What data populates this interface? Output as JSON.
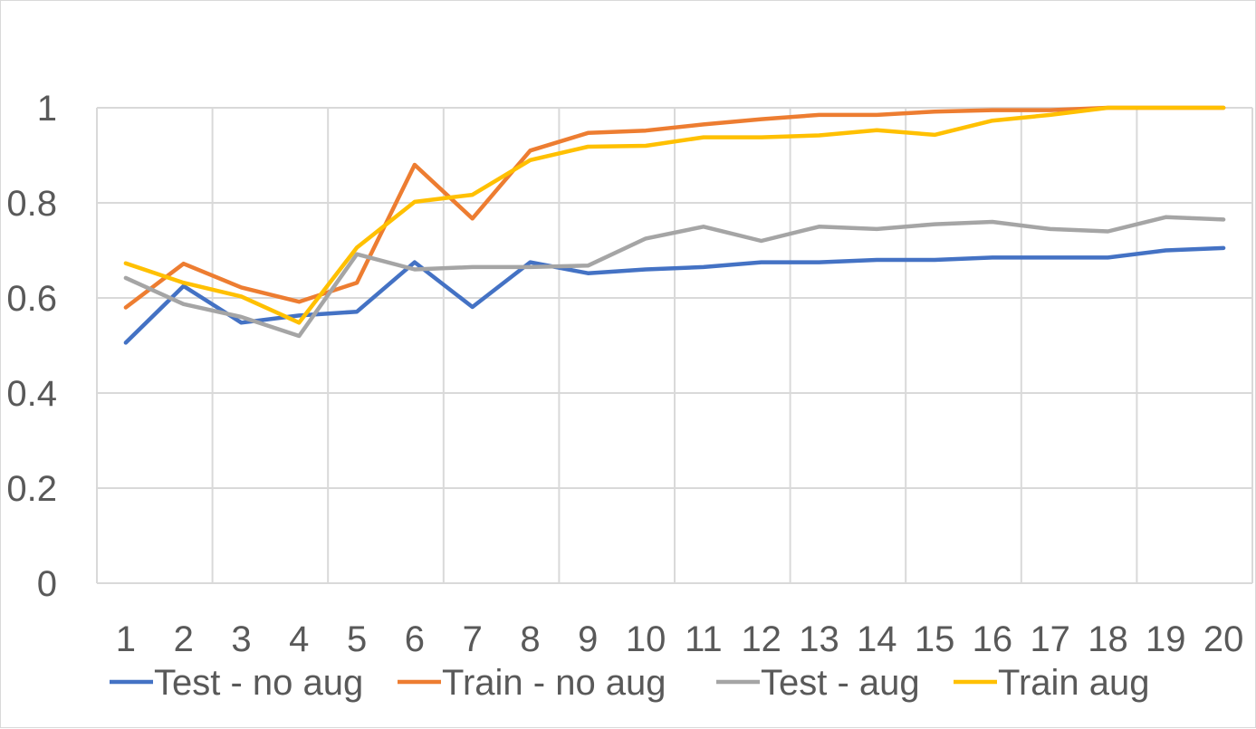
{
  "chart_data": {
    "type": "line",
    "title": "",
    "xlabel": "",
    "ylabel": "",
    "x": [
      "1",
      "2",
      "3",
      "4",
      "5",
      "6",
      "7",
      "8",
      "9",
      "10",
      "11",
      "12",
      "13",
      "14",
      "15",
      "16",
      "17",
      "18",
      "19",
      "20"
    ],
    "ylim": [
      0,
      1
    ],
    "yticks": [
      "0",
      "0.2",
      "0.4",
      "0.6",
      "0.8",
      "1"
    ],
    "grid": true,
    "legend_position": "bottom",
    "series": [
      {
        "name": "Test - no aug",
        "color": "#4472c4",
        "values": [
          0.506,
          0.625,
          0.548,
          0.563,
          0.571,
          0.675,
          0.581,
          0.675,
          0.652,
          0.66,
          0.665,
          0.675,
          0.675,
          0.68,
          0.68,
          0.685,
          0.685,
          0.685,
          0.7,
          0.705
        ]
      },
      {
        "name": "Train - no aug",
        "color": "#ed7d31",
        "values": [
          0.58,
          0.672,
          0.622,
          0.592,
          0.632,
          0.88,
          0.767,
          0.91,
          0.947,
          0.952,
          0.965,
          0.976,
          0.985,
          0.985,
          0.992,
          0.995,
          0.995,
          1.0,
          1.0,
          1.0
        ]
      },
      {
        "name": "Test - aug",
        "color": "#a5a5a5",
        "values": [
          0.642,
          0.587,
          0.56,
          0.52,
          0.692,
          0.66,
          0.665,
          0.665,
          0.668,
          0.725,
          0.75,
          0.72,
          0.75,
          0.745,
          0.755,
          0.76,
          0.745,
          0.74,
          0.77,
          0.765
        ]
      },
      {
        "name": "Train aug",
        "color": "#ffc000",
        "values": [
          0.673,
          0.632,
          0.603,
          0.548,
          0.706,
          0.802,
          0.817,
          0.89,
          0.918,
          0.92,
          0.938,
          0.938,
          0.942,
          0.953,
          0.943,
          0.973,
          0.985,
          1.0,
          1.0,
          1.0
        ]
      }
    ]
  }
}
